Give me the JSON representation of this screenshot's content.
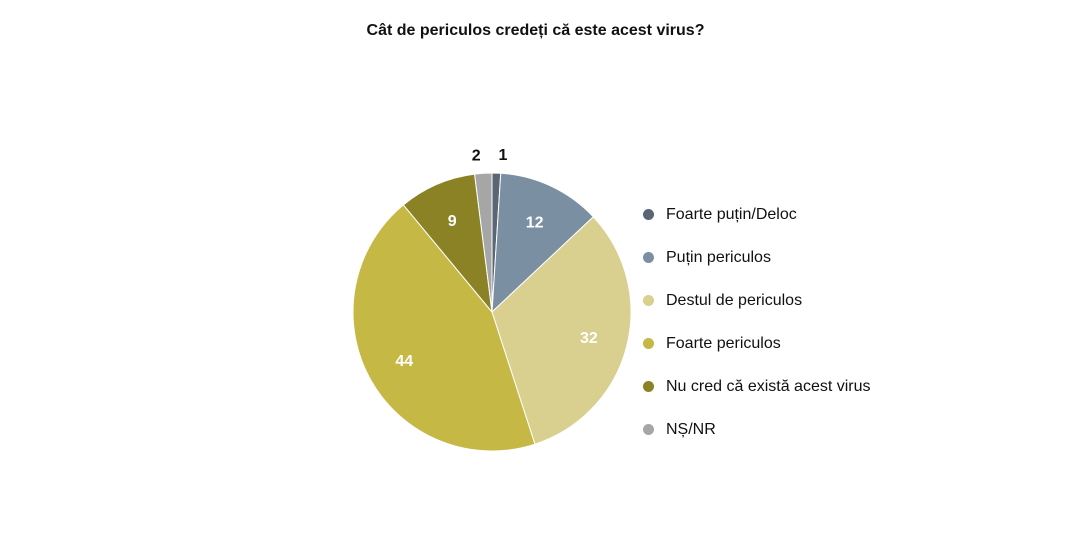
{
  "chart_data": {
    "type": "pie",
    "title": "Cât de periculos credeți că este acest virus?",
    "categories": [
      "Foarte puțin/Deloc",
      "Puțin periculos",
      "Destul de periculos",
      "Foarte periculos",
      "Nu cred că există acest virus",
      "NȘ/NR"
    ],
    "values": [
      1,
      12,
      32,
      44,
      9,
      2
    ],
    "colors": [
      "#5a6673",
      "#7b8fa3",
      "#d9cf8f",
      "#c5b845",
      "#8b8226",
      "#a6a6a6"
    ],
    "legend_position": "right"
  }
}
